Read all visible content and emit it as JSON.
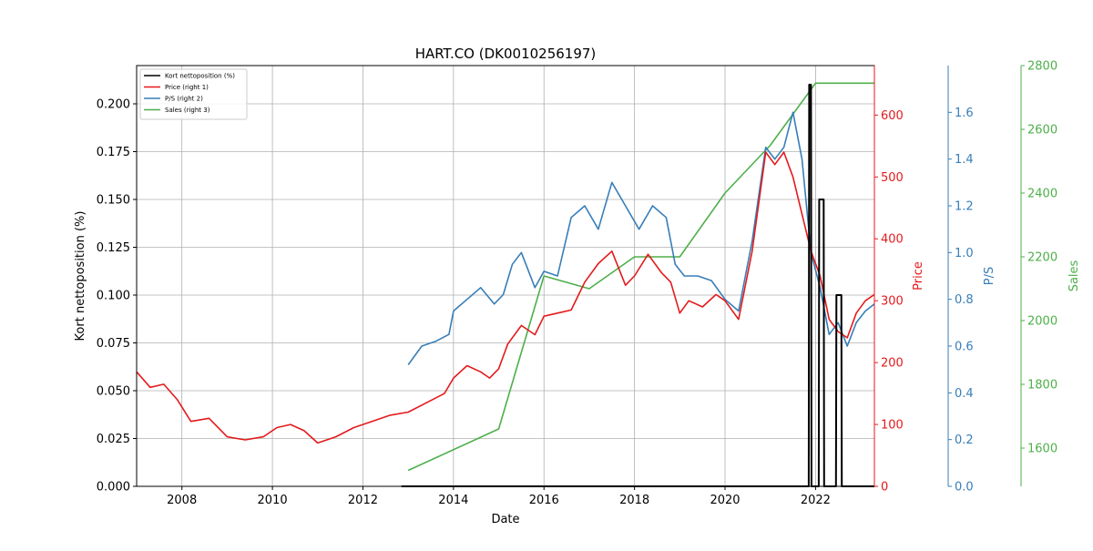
{
  "chart_data": {
    "type": "line",
    "title": "HART.CO (DK0010256197)",
    "xlabel": "Date",
    "ylabel": "Kort nettoposition (%)",
    "x_range": [
      2007.0,
      2023.3
    ],
    "x_ticks": [
      "2008",
      "2010",
      "2012",
      "2014",
      "2016",
      "2018",
      "2020",
      "2022"
    ],
    "grid": true,
    "legend_position": "top-left",
    "colors": {
      "short": "#000000",
      "price": "#e41a1c",
      "ps": "#377eb8",
      "sales": "#4daf4a",
      "grid": "#b0b0b0"
    },
    "axes": {
      "left": {
        "label": "Kort nettoposition (%)",
        "range": [
          0.0,
          0.22
        ],
        "ticks": [
          "0.000",
          "0.025",
          "0.050",
          "0.075",
          "0.100",
          "0.125",
          "0.150",
          "0.175",
          "0.200"
        ]
      },
      "right1": {
        "label": "Price",
        "range": [
          0,
          680
        ],
        "ticks": [
          "0",
          "100",
          "200",
          "300",
          "400",
          "500",
          "600"
        ]
      },
      "right2": {
        "label": "P/S",
        "range": [
          0.0,
          1.8
        ],
        "ticks": [
          "0.0",
          "0.2",
          "0.4",
          "0.6",
          "0.8",
          "1.0",
          "1.2",
          "1.4",
          "1.6"
        ]
      },
      "right3": {
        "label": "Sales",
        "range": [
          1480,
          2800
        ],
        "ticks": [
          "1600",
          "1800",
          "2000",
          "2200",
          "2400",
          "2600",
          "2800"
        ]
      }
    },
    "series": [
      {
        "name": "Kort nettoposition (%)",
        "axis": "left",
        "x": [
          2012.85,
          2021.85,
          2021.86,
          2021.9,
          2021.91,
          2022.07,
          2022.08,
          2022.18,
          2022.19,
          2022.45,
          2022.46,
          2022.57,
          2022.58,
          2023.3
        ],
        "y": [
          0.0,
          0.0,
          0.21,
          0.21,
          0.0,
          0.0,
          0.15,
          0.15,
          0.0,
          0.0,
          0.1,
          0.1,
          0.0,
          0.0
        ]
      },
      {
        "name": "Price (right 1)",
        "axis": "right1",
        "x": [
          2007.0,
          2007.3,
          2007.6,
          2007.9,
          2008.2,
          2008.6,
          2009.0,
          2009.4,
          2009.8,
          2010.1,
          2010.4,
          2010.7,
          2011.0,
          2011.4,
          2011.8,
          2012.2,
          2012.6,
          2013.0,
          2013.4,
          2013.8,
          2014.0,
          2014.3,
          2014.6,
          2014.8,
          2015.0,
          2015.2,
          2015.5,
          2015.8,
          2016.0,
          2016.3,
          2016.6,
          2016.9,
          2017.2,
          2017.5,
          2017.8,
          2018.0,
          2018.3,
          2018.6,
          2018.8,
          2019.0,
          2019.2,
          2019.5,
          2019.8,
          2020.0,
          2020.3,
          2020.6,
          2020.9,
          2021.1,
          2021.3,
          2021.5,
          2021.7,
          2021.9,
          2022.1,
          2022.3,
          2022.5,
          2022.7,
          2022.9,
          2023.1,
          2023.3
        ],
        "y": [
          185,
          160,
          165,
          140,
          105,
          110,
          80,
          75,
          80,
          95,
          100,
          90,
          70,
          80,
          95,
          105,
          115,
          120,
          135,
          150,
          175,
          195,
          185,
          175,
          190,
          230,
          260,
          245,
          275,
          280,
          285,
          330,
          360,
          380,
          325,
          340,
          375,
          345,
          330,
          280,
          300,
          290,
          310,
          300,
          270,
          380,
          540,
          520,
          540,
          500,
          440,
          380,
          340,
          270,
          250,
          240,
          280,
          300,
          310
        ]
      },
      {
        "name": "P/S (right 2)",
        "axis": "right2",
        "x": [
          2013.0,
          2013.3,
          2013.6,
          2013.9,
          2014.0,
          2014.3,
          2014.6,
          2014.9,
          2015.1,
          2015.3,
          2015.5,
          2015.8,
          2016.0,
          2016.3,
          2016.6,
          2016.9,
          2017.2,
          2017.5,
          2017.8,
          2018.1,
          2018.4,
          2018.7,
          2018.9,
          2019.1,
          2019.4,
          2019.7,
          2020.0,
          2020.3,
          2020.6,
          2020.9,
          2021.1,
          2021.3,
          2021.5,
          2021.7,
          2021.9,
          2022.1,
          2022.3,
          2022.5,
          2022.7,
          2022.9,
          2023.1,
          2023.3
        ],
        "y": [
          0.52,
          0.6,
          0.62,
          0.65,
          0.75,
          0.8,
          0.85,
          0.78,
          0.82,
          0.95,
          1.0,
          0.85,
          0.92,
          0.9,
          1.15,
          1.2,
          1.1,
          1.3,
          1.2,
          1.1,
          1.2,
          1.15,
          0.95,
          0.9,
          0.9,
          0.88,
          0.8,
          0.75,
          1.05,
          1.45,
          1.4,
          1.45,
          1.6,
          1.4,
          1.0,
          0.85,
          0.65,
          0.7,
          0.6,
          0.7,
          0.75,
          0.78
        ]
      },
      {
        "name": "Sales (right 3)",
        "axis": "right3",
        "x": [
          2013.0,
          2015.0,
          2016.0,
          2017.0,
          2018.0,
          2019.0,
          2020.0,
          2021.0,
          2022.0,
          2023.3
        ],
        "y": [
          1530,
          1660,
          2140,
          2100,
          2200,
          2200,
          2400,
          2550,
          2745,
          2745
        ]
      }
    ]
  }
}
